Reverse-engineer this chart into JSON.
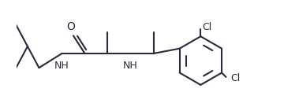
{
  "bg_color": "#ffffff",
  "line_color": "#2a2a3e",
  "lw": 1.5,
  "fs": 9.0,
  "figsize": [
    3.6,
    1.36
  ],
  "dpi": 100,
  "xlim": [
    0.05,
    3.55
  ],
  "ylim": [
    -0.75,
    0.75
  ]
}
